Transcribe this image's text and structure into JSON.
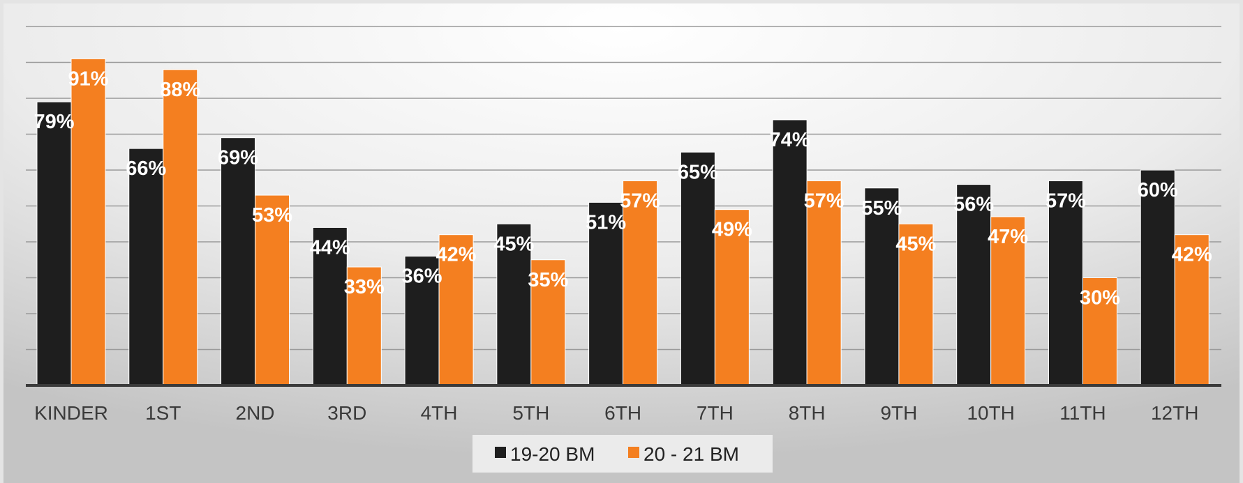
{
  "chart_data": {
    "type": "bar",
    "categories": [
      "KINDER",
      "1ST",
      "2ND",
      "3RD",
      "4TH",
      "5TH",
      "6TH",
      "7TH",
      "8TH",
      "9TH",
      "10TH",
      "11TH",
      "12TH"
    ],
    "series": [
      {
        "name": "19-20 BM",
        "color": "#1e1e1e",
        "values": [
          79,
          66,
          69,
          44,
          36,
          45,
          51,
          65,
          74,
          55,
          56,
          57,
          60
        ],
        "labels": [
          "79%",
          "66%",
          "69%",
          "44%",
          "36%",
          "45%",
          "51%",
          "65%",
          "74%",
          "55%",
          "56%",
          "57%",
          "60%"
        ]
      },
      {
        "name": "20 - 21 BM",
        "color": "#f47f20",
        "values": [
          91,
          88,
          53,
          33,
          42,
          35,
          57,
          49,
          57,
          45,
          47,
          30,
          42
        ],
        "labels": [
          "91%",
          "88%",
          "53%",
          "33%",
          "42%",
          "35%",
          "57%",
          "49%",
          "57%",
          "45%",
          "47%",
          "30%",
          "42%"
        ]
      }
    ],
    "title": "",
    "xlabel": "",
    "ylabel": "",
    "ylim": [
      0,
      100
    ],
    "grid": true,
    "legend": "bottom"
  }
}
